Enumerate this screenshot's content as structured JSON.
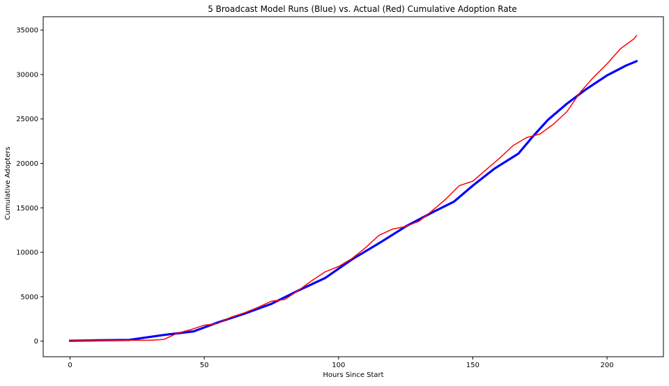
{
  "chart_data": {
    "type": "line",
    "title": "5 Broadcast Model Runs (Blue) vs. Actual (Red) Cumulative Adoption Rate",
    "xlabel": "Hours Since Start",
    "ylabel": "Cumulative Adopters",
    "xlim": [
      -10,
      221
    ],
    "ylim": [
      -1750,
      36500
    ],
    "xticks": [
      0,
      50,
      100,
      150,
      200
    ],
    "yticks": [
      0,
      5000,
      10000,
      15000,
      20000,
      25000,
      30000,
      35000
    ],
    "grid": false,
    "legend": "none",
    "series": [
      {
        "color": "#0000ff",
        "x": [
          0,
          10,
          22,
          35,
          46,
          55,
          65,
          75,
          85,
          95,
          105,
          115,
          125,
          135,
          143,
          150,
          158,
          167,
          172,
          178,
          185,
          192,
          200,
          207,
          211
        ],
        "y": [
          50,
          100,
          150,
          700,
          1100,
          2100,
          3100,
          4200,
          5700,
          7100,
          9200,
          11000,
          12900,
          14500,
          15700,
          17500,
          19400,
          21100,
          22900,
          24900,
          26700,
          28300,
          29900,
          31000,
          31500
        ]
      },
      {
        "color": "#ff0000",
        "x": [
          0,
          10,
          20,
          30,
          35,
          40,
          45,
          50,
          55,
          60,
          65,
          70,
          75,
          80,
          85,
          90,
          95,
          100,
          105,
          110,
          115,
          120,
          125,
          130,
          135,
          140,
          145,
          150,
          155,
          160,
          165,
          170,
          175,
          180,
          185,
          190,
          195,
          200,
          205,
          210,
          211
        ],
        "y": [
          100,
          100,
          100,
          100,
          200,
          900,
          1300,
          1800,
          2000,
          2700,
          3200,
          3800,
          4500,
          4700,
          5700,
          6800,
          7800,
          8400,
          9300,
          10500,
          11900,
          12600,
          12900,
          13500,
          14700,
          16000,
          17500,
          18000,
          19300,
          20600,
          22000,
          22900,
          23300,
          24400,
          25800,
          28000,
          29700,
          31200,
          32900,
          34000,
          34400
        ]
      }
    ]
  }
}
